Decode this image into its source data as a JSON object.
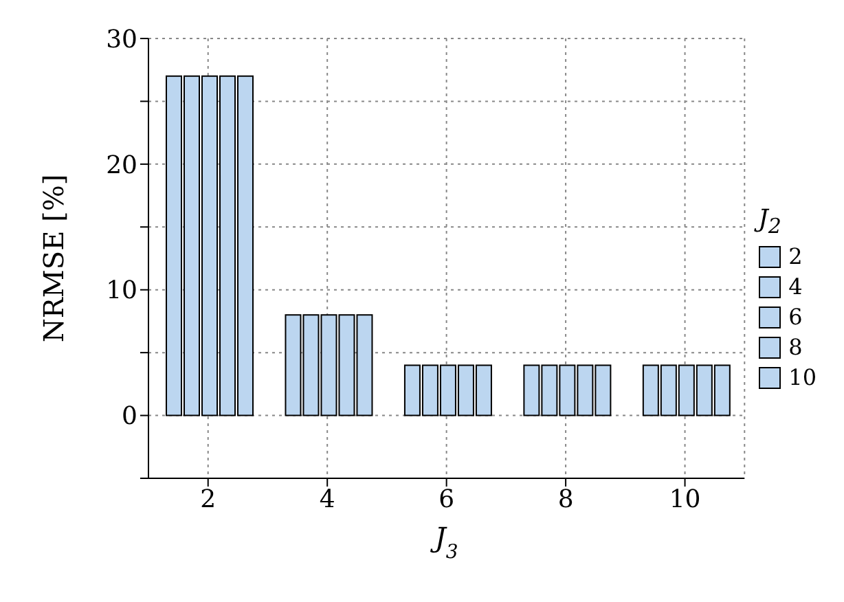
{
  "chart_data": {
    "type": "bar",
    "ylabel": "NRMSE [%]",
    "xlabel": "J$_{3}$",
    "legend_title": "J$_{2}$",
    "categories": [
      "2",
      "4",
      "6",
      "8",
      "10"
    ],
    "series": [
      {
        "name": "2",
        "color": "#bcd6f0",
        "values": [
          27,
          8,
          4,
          4,
          4
        ]
      },
      {
        "name": "4",
        "color": "#bcd6f0",
        "values": [
          27,
          8,
          4,
          4,
          4
        ]
      },
      {
        "name": "6",
        "color": "#bcd6f0",
        "values": [
          27,
          8,
          4,
          4,
          4
        ]
      },
      {
        "name": "8",
        "color": "#bcd6f0",
        "values": [
          27,
          8,
          4,
          4,
          4
        ]
      },
      {
        "name": "10",
        "color": "#bcd6f0",
        "values": [
          27,
          8,
          4,
          4,
          4
        ]
      }
    ],
    "ylim": [
      -5,
      30
    ],
    "yticks": [
      {
        "value": -5,
        "label": null
      },
      0,
      {
        "value": 5,
        "label": null
      },
      10,
      {
        "value": 15,
        "label": null
      },
      20,
      {
        "value": 25,
        "label": null
      },
      30
    ],
    "grid": true,
    "legend": "right"
  }
}
